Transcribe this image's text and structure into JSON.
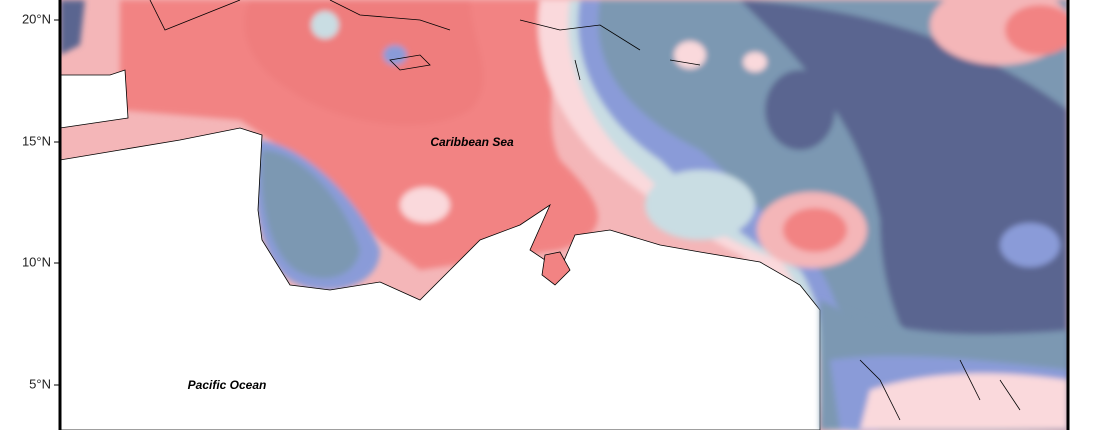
{
  "map": {
    "lat_labels": [
      "20°N",
      "15°N",
      "10°N",
      "5°N"
    ],
    "places": [
      "Caribbean Sea",
      "Pacific Ocean"
    ]
  }
}
